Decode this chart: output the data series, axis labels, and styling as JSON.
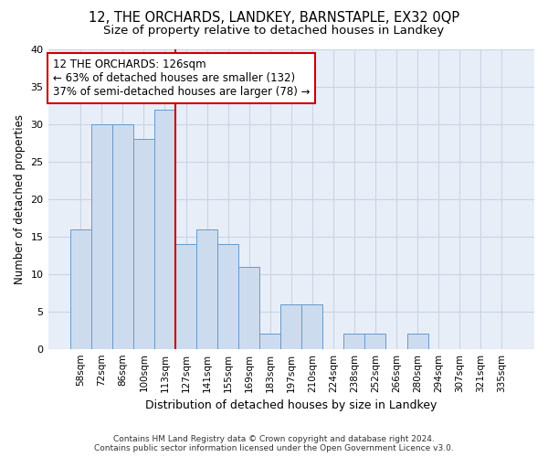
{
  "title1": "12, THE ORCHARDS, LANDKEY, BARNSTAPLE, EX32 0QP",
  "title2": "Size of property relative to detached houses in Landkey",
  "xlabel": "Distribution of detached houses by size in Landkey",
  "ylabel": "Number of detached properties",
  "categories": [
    "58sqm",
    "72sqm",
    "86sqm",
    "100sqm",
    "113sqm",
    "127sqm",
    "141sqm",
    "155sqm",
    "169sqm",
    "183sqm",
    "197sqm",
    "210sqm",
    "224sqm",
    "238sqm",
    "252sqm",
    "266sqm",
    "280sqm",
    "294sqm",
    "307sqm",
    "321sqm",
    "335sqm"
  ],
  "values": [
    16,
    30,
    30,
    28,
    32,
    14,
    16,
    14,
    11,
    2,
    6,
    6,
    0,
    2,
    2,
    0,
    2,
    0,
    0,
    0,
    0
  ],
  "bar_color": "#ccdcee",
  "bar_edge_color": "#6699cc",
  "vline_color": "#cc0000",
  "annotation_text": "12 THE ORCHARDS: 126sqm\n← 63% of detached houses are smaller (132)\n37% of semi-detached houses are larger (78) →",
  "annotation_box_color": "white",
  "annotation_box_edge_color": "#cc0000",
  "footer_text": "Contains HM Land Registry data © Crown copyright and database right 2024.\nContains public sector information licensed under the Open Government Licence v3.0.",
  "ylim": [
    0,
    40
  ],
  "yticks": [
    0,
    5,
    10,
    15,
    20,
    25,
    30,
    35,
    40
  ],
  "grid_color": "#c8d4e4",
  "bg_color": "#ffffff",
  "plot_bg_color": "#e8eef8"
}
